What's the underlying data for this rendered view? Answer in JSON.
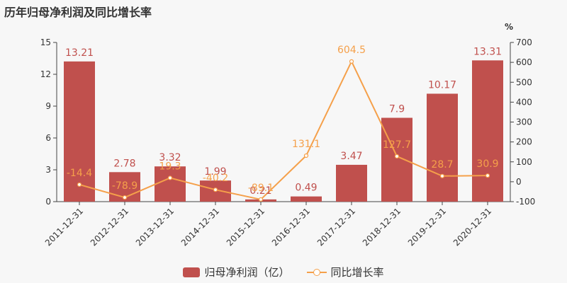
{
  "title": "历年归母净利润及同比增长率",
  "colors": {
    "bar": "#c0504d",
    "line": "#f5a04a",
    "bar_label": "#c0504d",
    "line_label": "#f5a04a"
  },
  "chart_data": {
    "type": "bar",
    "categories": [
      "2011-12-31",
      "2012-12-31",
      "2013-12-31",
      "2014-12-31",
      "2015-12-31",
      "2016-12-31",
      "2017-12-31",
      "2018-12-31",
      "2019-12-31",
      "2020-12-31"
    ],
    "series": [
      {
        "name": "归母净利润（亿）",
        "type": "bar",
        "axis": "left",
        "values": [
          13.21,
          2.78,
          3.32,
          1.99,
          0.21,
          0.49,
          3.47,
          7.9,
          10.17,
          13.31
        ],
        "labels": [
          "13.21",
          "2.78",
          "3.32",
          "1.99",
          "0.21",
          "0.49",
          "3.47",
          "7.9",
          "10.17",
          "13.31"
        ]
      },
      {
        "name": "同比增长率",
        "type": "line",
        "axis": "right",
        "values": [
          -14.4,
          -78.9,
          19.3,
          -40.2,
          -89.1,
          131.1,
          604.5,
          127.7,
          28.7,
          30.9
        ],
        "labels": [
          "-14.4",
          "-78.9",
          "19.3",
          "-40.2",
          "-89.1",
          "131.1",
          "604.5",
          "127.7",
          "28.7",
          "30.9"
        ]
      }
    ],
    "y_left": {
      "min": 0,
      "max": 15,
      "ticks": [
        0,
        3,
        6,
        9,
        12,
        15
      ]
    },
    "y_right": {
      "min": -100,
      "max": 700,
      "unit": "%",
      "ticks": [
        -100,
        0,
        100,
        200,
        300,
        400,
        500,
        600,
        700
      ]
    },
    "legend_position": "bottom",
    "grid": false
  }
}
